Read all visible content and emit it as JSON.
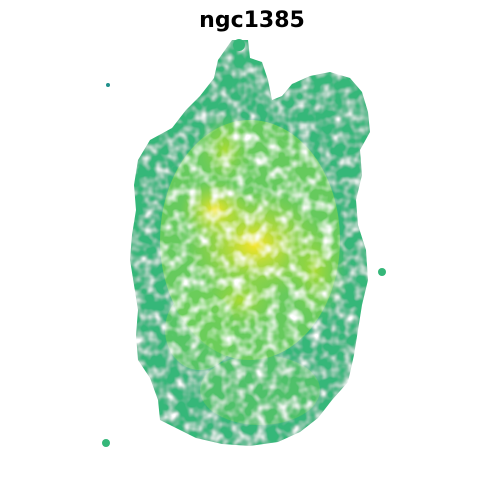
{
  "figure": {
    "title": "ngc1385",
    "colormap": "viridis",
    "background": "#ffffff",
    "colors": {
      "low": "#21918c",
      "mid_low": "#35b779",
      "mid": "#6ece58",
      "mid_high": "#b5de2b",
      "high": "#fde725"
    }
  }
}
